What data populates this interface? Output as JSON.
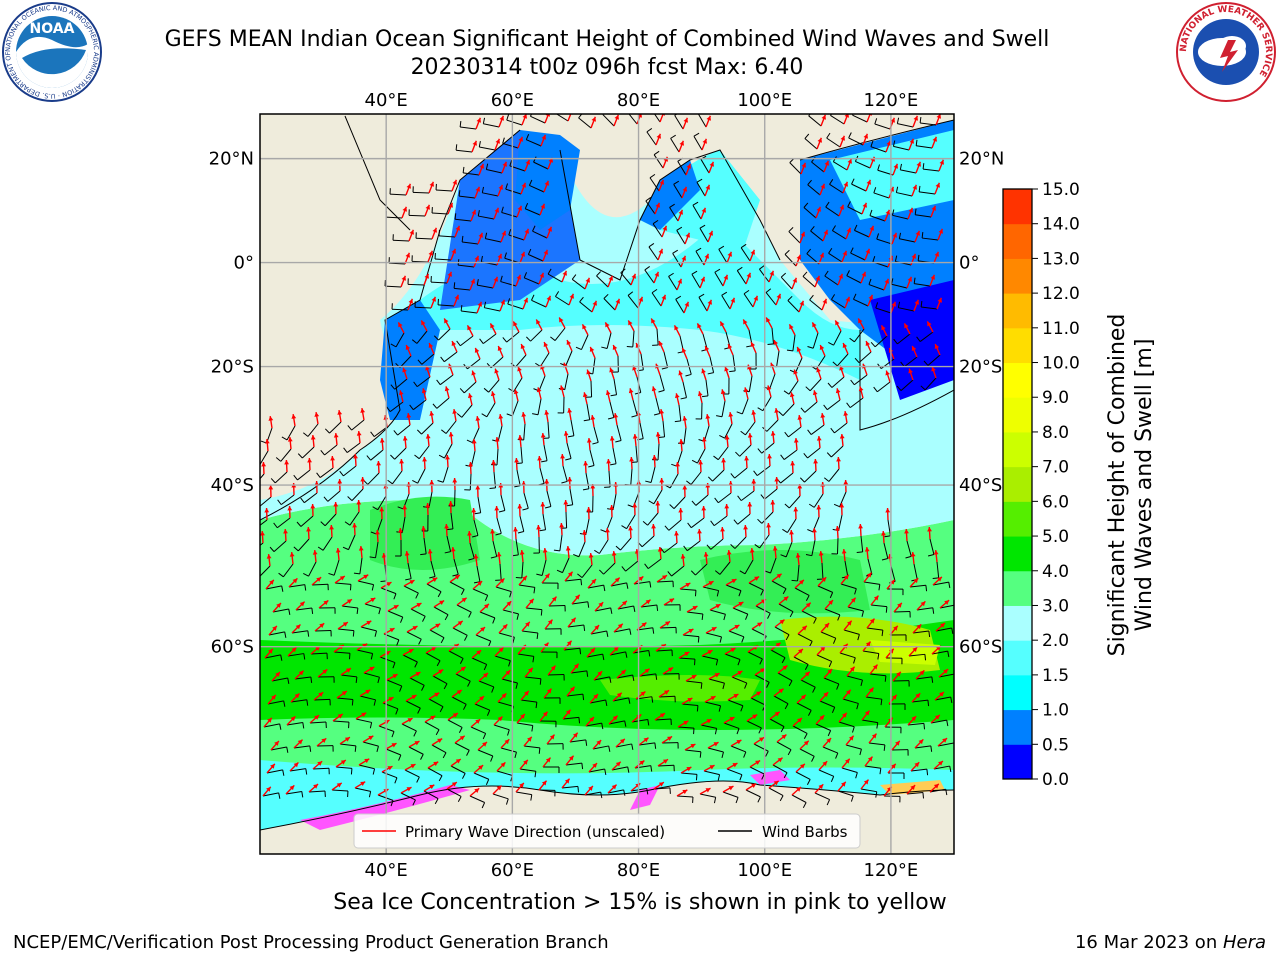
{
  "header": {
    "title_line1": "GEFS MEAN Indian Ocean Significant Height of Combined Wind Waves and Swell",
    "title_line2": "20230314 t00z 096h fcst   Max: 6.40"
  },
  "logos": {
    "noaa_text": "NOAA",
    "noaa_ring": "NATIONAL OCEANIC AND ATMOSPHERIC ADMINISTRATION · U.S. DEPARTMENT OF COMMERCE",
    "nws_ring": "NATIONAL WEATHER SERVICE"
  },
  "map": {
    "lon_labels": [
      "40°E",
      "60°E",
      "80°E",
      "100°E",
      "120°E"
    ],
    "lat_labels_left": [
      "20°N",
      "0°",
      "20°S",
      "40°S",
      "60°S"
    ],
    "lat_labels_right": [
      "20°N",
      "0°",
      "20°S",
      "40°S",
      "60°S"
    ],
    "lon_values": [
      40,
      60,
      80,
      100,
      120
    ],
    "lat_values": [
      20,
      0,
      -20,
      -40,
      -60
    ],
    "extent": {
      "lon_min": 20,
      "lon_max": 130,
      "lat_min": -75,
      "lat_max": 28
    },
    "projection": "Mercator",
    "land_color": "#efecdc",
    "gridlines": true
  },
  "legend": {
    "entries": [
      {
        "label": "Primary Wave Direction (unscaled)",
        "color": "#ff0000"
      },
      {
        "label": "Wind Barbs",
        "color": "#000000"
      }
    ],
    "placement": "bottom-center"
  },
  "colorbar": {
    "label_line1": "Significant Height of Combined",
    "label_line2": "Wind Waves and Swell [m]",
    "ticks": [
      "0.0",
      "0.5",
      "1.0",
      "1.5",
      "2.0",
      "3.0",
      "4.0",
      "5.0",
      "6.0",
      "7.0",
      "8.0",
      "9.0",
      "10.0",
      "11.0",
      "12.0",
      "13.0",
      "14.0",
      "15.0"
    ],
    "colors": [
      "#0000ff",
      "#0080ff",
      "#00ffff",
      "#55ffff",
      "#aaffff",
      "#55ff80",
      "#00e600",
      "#55ee00",
      "#aaee00",
      "#ccff00",
      "#eeff00",
      "#ffff00",
      "#ffdd00",
      "#ffbb00",
      "#ff8800",
      "#ff6600",
      "#ff3300",
      "#ff0000"
    ]
  },
  "notes": {
    "ice": "Sea Ice Concentration > 15% is shown in pink to yellow"
  },
  "footer": {
    "left": "NCEP/EMC/Verification Post Processing Product Generation Branch",
    "right_prefix": "16 Mar 2023 on ",
    "right_host": "Hera"
  }
}
